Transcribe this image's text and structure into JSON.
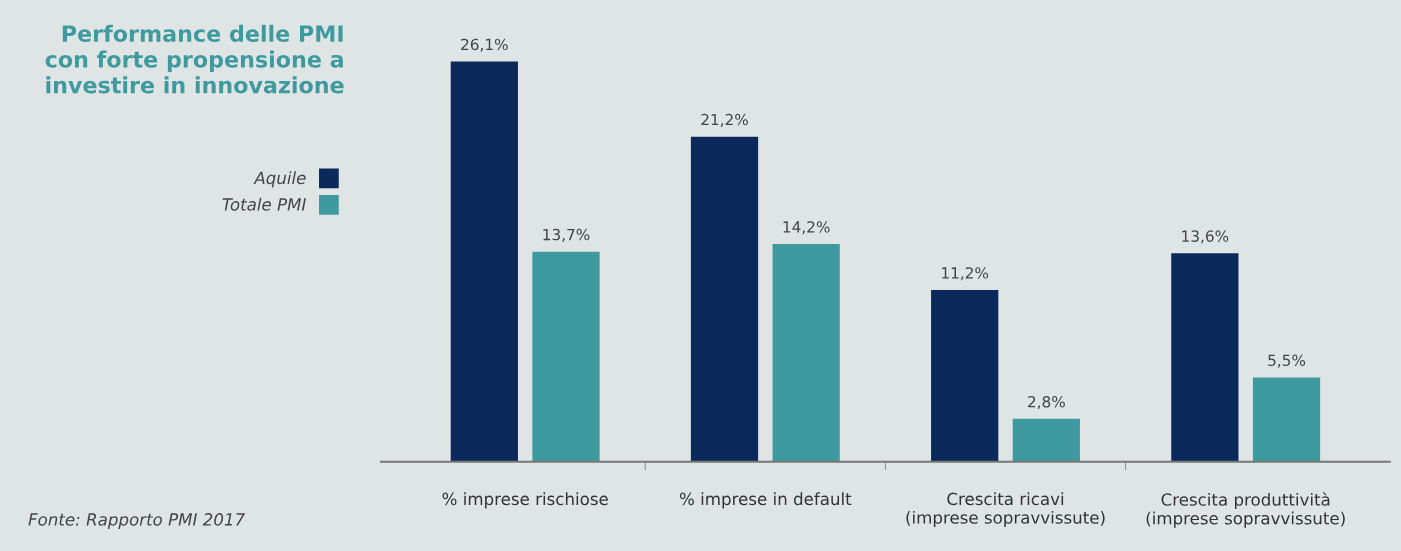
{
  "chart_data": {
    "type": "bar",
    "title": "Performance delle PMI\ncon forte propensione a\ninvestire in innovazione",
    "categories": [
      "% imprese rischiose",
      "% imprese in default",
      "Crescita ricavi\n(imprese sopravvissute)",
      "Crescita produttività\n(imprese sopravvissute)"
    ],
    "series": [
      {
        "name": "Aquile",
        "color": "#0b2a5b",
        "values": [
          26.1,
          21.2,
          11.2,
          13.6
        ],
        "value_labels": [
          "26,1%",
          "21,2%",
          "11,2%",
          "13,6%"
        ]
      },
      {
        "name": "Totale PMI",
        "color": "#3f9aa0",
        "values": [
          13.7,
          14.2,
          2.8,
          5.5
        ],
        "value_labels": [
          "13,7%",
          "14,2%",
          "2,8%",
          "5,5%"
        ]
      }
    ],
    "legend": "top left",
    "grid": false,
    "tick_labels": "x",
    "annotations": [
      "Fonte: Rapporto PMI 2017"
    ]
  }
}
